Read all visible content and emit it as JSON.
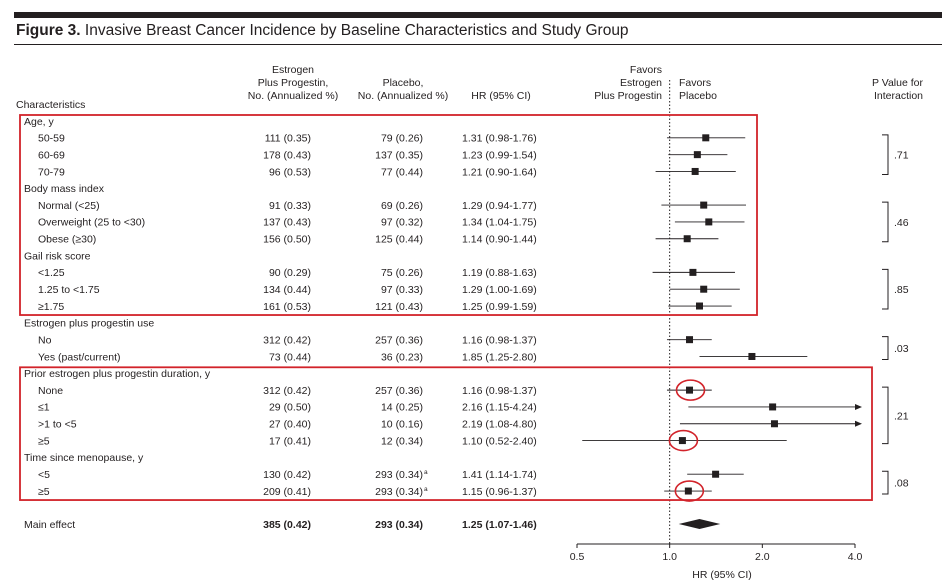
{
  "figure": {
    "label": "Figure 3.",
    "title": "Invasive Breast Cancer Incidence by Baseline Characteristics and Study Group"
  },
  "chart_data": {
    "type": "forest",
    "headers": {
      "characteristics": "Characteristics",
      "ep": [
        "Estrogen",
        "Plus Progestin,",
        "No. (Annualized %)"
      ],
      "placebo": [
        "Placebo,",
        "No. (Annualized %)"
      ],
      "hr": "HR (95% CI)",
      "favors_left": [
        "Favors",
        "Estrogen",
        "Plus Progestin"
      ],
      "favors_right": [
        "Favors",
        "Placebo"
      ],
      "pval": [
        "P Value for",
        "Interaction"
      ]
    },
    "x_axis": {
      "label": "HR (95% CI)",
      "scale": "log",
      "ticks": [
        0.5,
        1.0,
        2.0,
        4.0
      ],
      "tick_labels": [
        "0.5",
        "1.0",
        "2.0",
        "4.0"
      ],
      "reference_line": 1.0
    },
    "rows": [
      {
        "type": "group",
        "label": "Age, y"
      },
      {
        "type": "item",
        "label": "50-59",
        "ep": "111 (0.35)",
        "placebo": "79 (0.26)",
        "hr_text": "1.31 (0.98-1.76)",
        "hr": 1.31,
        "lo": 0.98,
        "hi": 1.76
      },
      {
        "type": "item",
        "label": "60-69",
        "ep": "178 (0.43)",
        "placebo": "137 (0.35)",
        "hr_text": "1.23 (0.99-1.54)",
        "hr": 1.23,
        "lo": 0.99,
        "hi": 1.54
      },
      {
        "type": "item",
        "label": "70-79",
        "ep": "96 (0.53)",
        "placebo": "77 (0.44)",
        "hr_text": "1.21 (0.90-1.64)",
        "hr": 1.21,
        "lo": 0.9,
        "hi": 1.64
      },
      {
        "type": "group",
        "label": "Body mass index"
      },
      {
        "type": "item",
        "label": "Normal (<25)",
        "ep": "91 (0.33)",
        "placebo": "69 (0.26)",
        "hr_text": "1.29 (0.94-1.77)",
        "hr": 1.29,
        "lo": 0.94,
        "hi": 1.77
      },
      {
        "type": "item",
        "label": "Overweight (25 to <30)",
        "ep": "137 (0.43)",
        "placebo": "97 (0.32)",
        "hr_text": "1.34 (1.04-1.75)",
        "hr": 1.34,
        "lo": 1.04,
        "hi": 1.75
      },
      {
        "type": "item",
        "label": "Obese (≥30)",
        "ep": "156 (0.50)",
        "placebo": "125 (0.44)",
        "hr_text": "1.14 (0.90-1.44)",
        "hr": 1.14,
        "lo": 0.9,
        "hi": 1.44
      },
      {
        "type": "group",
        "label": "Gail risk score"
      },
      {
        "type": "item",
        "label": "<1.25",
        "ep": "90 (0.29)",
        "placebo": "75 (0.26)",
        "hr_text": "1.19 (0.88-1.63)",
        "hr": 1.19,
        "lo": 0.88,
        "hi": 1.63
      },
      {
        "type": "item",
        "label": "1.25 to <1.75",
        "ep": "134 (0.44)",
        "placebo": "97 (0.33)",
        "hr_text": "1.29 (1.00-1.69)",
        "hr": 1.29,
        "lo": 1.0,
        "hi": 1.69
      },
      {
        "type": "item",
        "label": "≥1.75",
        "ep": "161 (0.53)",
        "placebo": "121 (0.43)",
        "hr_text": "1.25 (0.99-1.59)",
        "hr": 1.25,
        "lo": 0.99,
        "hi": 1.59
      },
      {
        "type": "group",
        "label": "Estrogen plus progestin use"
      },
      {
        "type": "item",
        "label": "No",
        "ep": "312 (0.42)",
        "placebo": "257 (0.36)",
        "hr_text": "1.16 (0.98-1.37)",
        "hr": 1.16,
        "lo": 0.98,
        "hi": 1.37
      },
      {
        "type": "item",
        "label": "Yes (past/current)",
        "ep": "73 (0.44)",
        "placebo": "36 (0.23)",
        "hr_text": "1.85 (1.25-2.80)",
        "hr": 1.85,
        "lo": 1.25,
        "hi": 2.8
      },
      {
        "type": "group",
        "label": "Prior estrogen plus progestin duration, y"
      },
      {
        "type": "item",
        "label": "None",
        "ep": "312 (0.42)",
        "placebo": "257 (0.36)",
        "hr_text": "1.16 (0.98-1.37)",
        "hr": 1.16,
        "lo": 0.98,
        "hi": 1.37,
        "circled": true
      },
      {
        "type": "item",
        "label": "≤1",
        "ep": "29 (0.50)",
        "placebo": "14 (0.25)",
        "hr_text": "2.16 (1.15-4.24)",
        "hr": 2.16,
        "lo": 1.15,
        "hi": 4.24,
        "arrow": true
      },
      {
        "type": "item",
        "label": ">1 to <5",
        "ep": "27 (0.40)",
        "placebo": "10 (0.16)",
        "hr_text": "2.19 (1.08-4.80)",
        "hr": 2.19,
        "lo": 1.08,
        "hi": 4.8,
        "arrow": true
      },
      {
        "type": "item",
        "label": "≥5",
        "ep": "17 (0.41)",
        "placebo": "12 (0.34)",
        "hr_text": "1.10 (0.52-2.40)",
        "hr": 1.1,
        "lo": 0.52,
        "hi": 2.4,
        "circled": true
      },
      {
        "type": "group",
        "label": "Time since menopause, y"
      },
      {
        "type": "item",
        "label": "<5",
        "ep": "130 (0.42)",
        "placebo": "293 (0.34)",
        "placebo_sup": "a",
        "hr_text": "1.41 (1.14-1.74)",
        "hr": 1.41,
        "lo": 1.14,
        "hi": 1.74
      },
      {
        "type": "item",
        "label": "≥5",
        "ep": "209 (0.41)",
        "placebo": "293 (0.34)",
        "placebo_sup": "a",
        "hr_text": "1.15 (0.96-1.37)",
        "hr": 1.15,
        "lo": 0.96,
        "hi": 1.37,
        "circled": true
      },
      {
        "type": "main",
        "label": "Main effect",
        "ep": "385 (0.42)",
        "placebo": "293 (0.34)",
        "hr_text": "1.25 (1.07-1.46)",
        "hr": 1.25,
        "lo": 1.07,
        "hi": 1.46
      }
    ],
    "interaction_p": [
      {
        "value": ".71",
        "from": 1,
        "to": 3
      },
      {
        "value": ".46",
        "from": 5,
        "to": 7
      },
      {
        "value": ".85",
        "from": 9,
        "to": 11
      },
      {
        "value": ".03",
        "from": 13,
        "to": 14
      },
      {
        "value": ".21",
        "from": 16,
        "to": 19
      },
      {
        "value": ".08",
        "from": 21,
        "to": 22
      }
    ],
    "highlight_boxes": [
      {
        "from": 0,
        "to": 11
      },
      {
        "from": 15,
        "to": 22
      }
    ],
    "colors": {
      "text": "#231f20",
      "highlight": "#d2232a",
      "rule": "#231f20"
    }
  }
}
